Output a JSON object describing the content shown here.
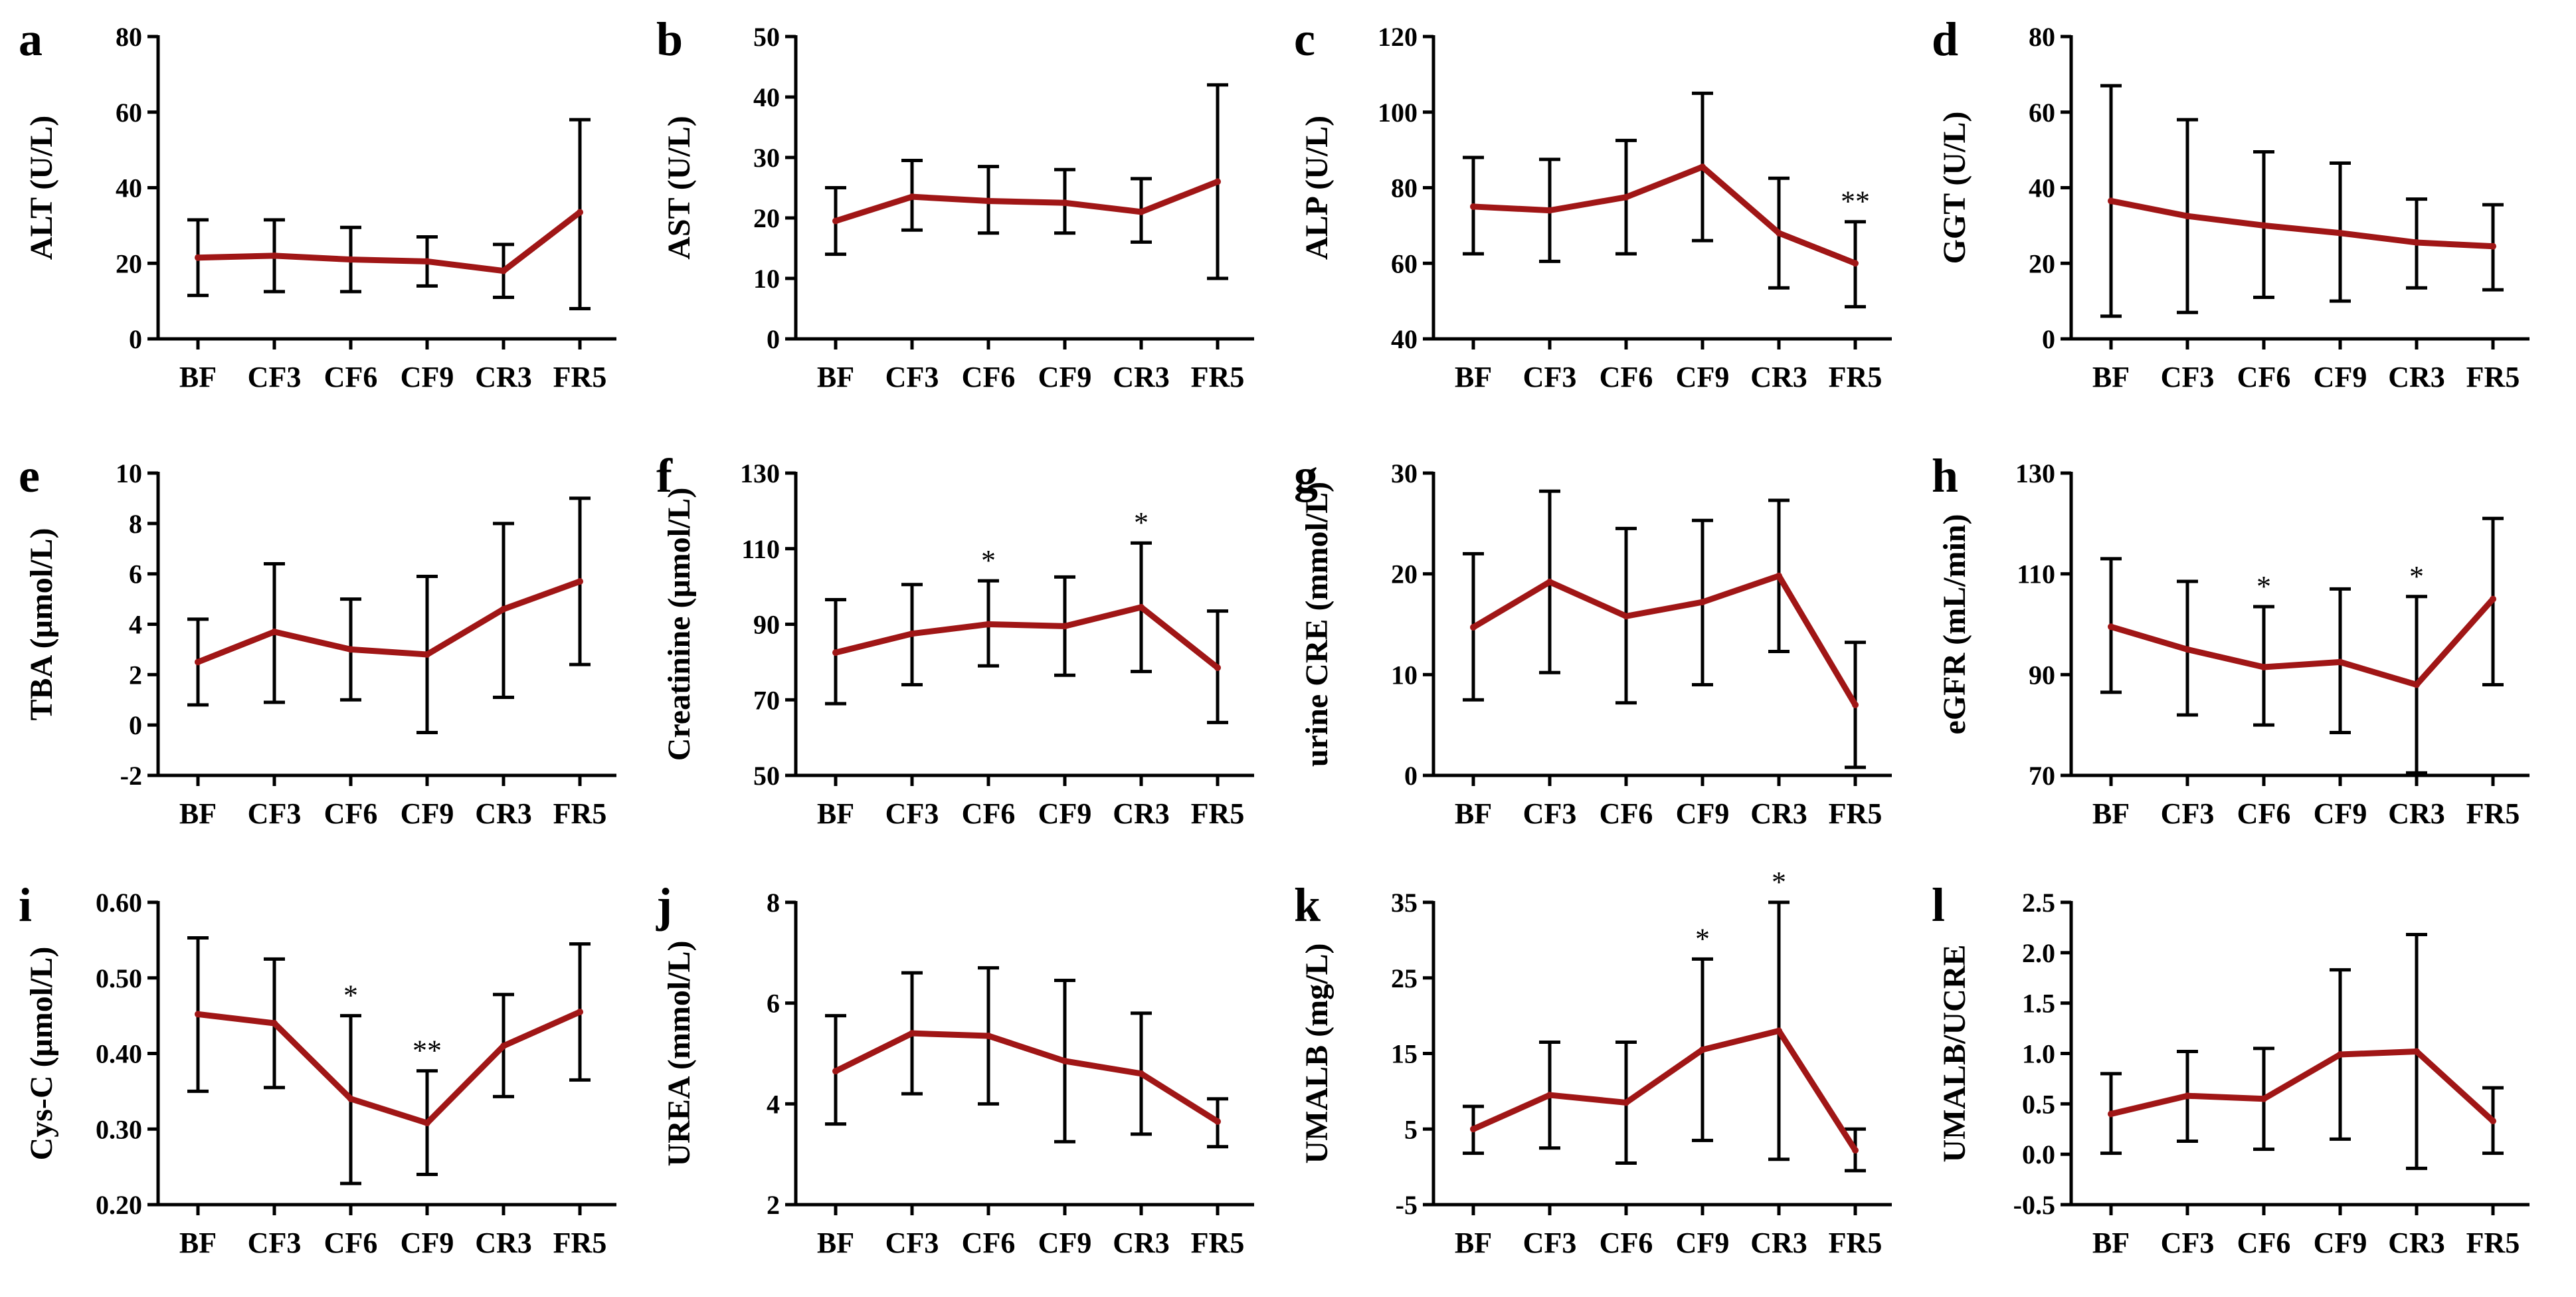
{
  "colors": {
    "series": "#a01616",
    "axis": "#000000",
    "error_bar": "#000000"
  },
  "categories": [
    "BF",
    "CF3",
    "CF6",
    "CF9",
    "CR3",
    "FR5"
  ],
  "chart_data": [
    {
      "id": "a",
      "type": "line",
      "panel_label": "a",
      "ylabel": "ALT (U/L)",
      "ylim": [
        0,
        80
      ],
      "yticks": [
        0,
        20,
        40,
        60,
        80
      ],
      "categories": [
        "BF",
        "CF3",
        "CF6",
        "CF9",
        "CR3",
        "FR5"
      ],
      "values": [
        21.5,
        22,
        21,
        20.5,
        18,
        33.5
      ],
      "err_upper": [
        31.5,
        31.5,
        29.5,
        27,
        25,
        58
      ],
      "err_lower": [
        11.5,
        12.5,
        12.5,
        14,
        11,
        8
      ],
      "significance": [
        "",
        "",
        "",
        "",
        "",
        ""
      ]
    },
    {
      "id": "b",
      "type": "line",
      "panel_label": "b",
      "ylabel": "AST (U/L)",
      "ylim": [
        0,
        50
      ],
      "yticks": [
        0,
        10,
        20,
        30,
        40,
        50
      ],
      "categories": [
        "BF",
        "CF3",
        "CF6",
        "CF9",
        "CR3",
        "FR5"
      ],
      "values": [
        19.5,
        23.5,
        22.8,
        22.5,
        21,
        26
      ],
      "err_upper": [
        25,
        29.5,
        28.5,
        28,
        26.5,
        42
      ],
      "err_lower": [
        14,
        18,
        17.5,
        17.5,
        16,
        10
      ],
      "significance": [
        "",
        "",
        "",
        "",
        "",
        ""
      ]
    },
    {
      "id": "c",
      "type": "line",
      "panel_label": "c",
      "ylabel": "ALP (U/L)",
      "ylim": [
        40,
        120
      ],
      "yticks": [
        40,
        60,
        80,
        100,
        120
      ],
      "categories": [
        "BF",
        "CF3",
        "CF6",
        "CF9",
        "CR3",
        "FR5"
      ],
      "values": [
        75,
        74,
        77.5,
        85.5,
        68,
        60
      ],
      "err_upper": [
        88,
        87.5,
        92.5,
        105,
        82.5,
        71
      ],
      "err_lower": [
        62.5,
        60.5,
        62.5,
        66,
        53.5,
        48.5
      ],
      "significance": [
        "",
        "",
        "",
        "",
        "",
        "**"
      ]
    },
    {
      "id": "d",
      "type": "line",
      "panel_label": "d",
      "ylabel": "GGT (U/L)",
      "ylim": [
        0,
        80
      ],
      "yticks": [
        0,
        20,
        40,
        60,
        80
      ],
      "categories": [
        "BF",
        "CF3",
        "CF6",
        "CF9",
        "CR3",
        "FR5"
      ],
      "values": [
        36.5,
        32.5,
        30,
        28,
        25.5,
        24.5
      ],
      "err_upper": [
        67,
        58,
        49.5,
        46.5,
        37,
        35.5
      ],
      "err_lower": [
        6,
        7,
        11,
        10,
        13.5,
        13
      ],
      "significance": [
        "",
        "",
        "",
        "",
        "",
        ""
      ]
    },
    {
      "id": "e",
      "type": "line",
      "panel_label": "e",
      "ylabel": "TBA (μmol/L)",
      "ylim": [
        -2,
        10
      ],
      "yticks": [
        -2,
        0,
        2,
        4,
        6,
        8,
        10
      ],
      "categories": [
        "BF",
        "CF3",
        "CF6",
        "CF9",
        "CR3",
        "FR5"
      ],
      "values": [
        2.5,
        3.7,
        3.0,
        2.8,
        4.6,
        5.7
      ],
      "err_upper": [
        4.2,
        6.4,
        5.0,
        5.9,
        8.0,
        9.0
      ],
      "err_lower": [
        0.8,
        0.9,
        1.0,
        -0.3,
        1.1,
        2.4
      ],
      "significance": [
        "",
        "",
        "",
        "",
        "",
        ""
      ]
    },
    {
      "id": "f",
      "type": "line",
      "panel_label": "f",
      "ylabel": "Creatinine  (μmol/L)",
      "ylim": [
        50,
        130
      ],
      "yticks": [
        50,
        70,
        90,
        110,
        130
      ],
      "categories": [
        "BF",
        "CF3",
        "CF6",
        "CF9",
        "CR3",
        "FR5"
      ],
      "values": [
        82.5,
        87.5,
        90,
        89.5,
        94.5,
        78.5
      ],
      "err_upper": [
        96.5,
        100.5,
        101.5,
        102.5,
        111.5,
        93.5
      ],
      "err_lower": [
        69,
        74,
        79,
        76.5,
        77.5,
        64
      ],
      "significance": [
        "",
        "",
        "*",
        "",
        "*",
        ""
      ]
    },
    {
      "id": "g",
      "type": "line",
      "panel_label": "g",
      "ylabel": "urine CRE  (mmol/L)",
      "ylim": [
        0,
        30
      ],
      "yticks": [
        0,
        10,
        20,
        30
      ],
      "categories": [
        "BF",
        "CF3",
        "CF6",
        "CF9",
        "CR3",
        "FR5"
      ],
      "values": [
        14.7,
        19.2,
        15.8,
        17.2,
        19.8,
        7
      ],
      "err_upper": [
        22,
        28.2,
        24.5,
        25.3,
        27.3,
        13.2
      ],
      "err_lower": [
        7.5,
        10.2,
        7.2,
        9,
        12.3,
        0.8
      ],
      "significance": [
        "",
        "",
        "",
        "",
        "",
        ""
      ]
    },
    {
      "id": "h",
      "type": "line",
      "panel_label": "h",
      "ylabel": "eGFR (mL/min)",
      "ylim": [
        70,
        130
      ],
      "yticks": [
        70,
        90,
        110,
        130
      ],
      "categories": [
        "BF",
        "CF3",
        "CF6",
        "CF9",
        "CR3",
        "FR5"
      ],
      "values": [
        99.5,
        95,
        91.5,
        92.5,
        88,
        105
      ],
      "err_upper": [
        113,
        108.5,
        103.5,
        107,
        105.5,
        121
      ],
      "err_lower": [
        86.5,
        82,
        80,
        78.5,
        70.5,
        88
      ],
      "significance": [
        "",
        "",
        "*",
        "",
        "*",
        ""
      ]
    },
    {
      "id": "i",
      "type": "line",
      "panel_label": "i",
      "ylabel": "Cys-C  (μmol/L)",
      "ylim": [
        0.2,
        0.6
      ],
      "yticks": [
        0.2,
        0.3,
        0.4,
        0.5,
        0.6
      ],
      "categories": [
        "BF",
        "CF3",
        "CF6",
        "CF9",
        "CR3",
        "FR5"
      ],
      "values": [
        0.452,
        0.44,
        0.34,
        0.308,
        0.41,
        0.455
      ],
      "err_upper": [
        0.553,
        0.525,
        0.45,
        0.377,
        0.478,
        0.545
      ],
      "err_lower": [
        0.35,
        0.355,
        0.228,
        0.24,
        0.343,
        0.365
      ],
      "significance": [
        "",
        "",
        "*",
        "**",
        "",
        ""
      ]
    },
    {
      "id": "j",
      "type": "line",
      "panel_label": "j",
      "ylabel": "UREA  (mmol/L)",
      "ylim": [
        2,
        8
      ],
      "yticks": [
        2,
        4,
        6,
        8
      ],
      "categories": [
        "BF",
        "CF3",
        "CF6",
        "CF9",
        "CR3",
        "FR5"
      ],
      "values": [
        4.65,
        5.4,
        5.35,
        4.85,
        4.6,
        3.65
      ],
      "err_upper": [
        5.75,
        6.6,
        6.7,
        6.45,
        5.8,
        4.1
      ],
      "err_lower": [
        3.6,
        4.2,
        4.0,
        3.25,
        3.4,
        3.15
      ],
      "significance": [
        "",
        "",
        "",
        "",
        "",
        ""
      ]
    },
    {
      "id": "k",
      "type": "line",
      "panel_label": "k",
      "ylabel": "UMALB (mg/L)",
      "ylim": [
        -5,
        35
      ],
      "yticks": [
        -5,
        5,
        15,
        25,
        35
      ],
      "categories": [
        "BF",
        "CF3",
        "CF6",
        "CF9",
        "CR3",
        "FR5"
      ],
      "values": [
        5,
        9.5,
        8.5,
        15.5,
        18,
        2.2
      ],
      "err_upper": [
        8,
        16.5,
        16.5,
        27.5,
        35,
        5
      ],
      "err_lower": [
        1.8,
        2.5,
        0.5,
        3.5,
        1,
        -0.5
      ],
      "significance": [
        "",
        "",
        "",
        "*",
        "*",
        ""
      ]
    },
    {
      "id": "l",
      "type": "line",
      "panel_label": "l",
      "ylabel": "UMALB/UCRE",
      "ylim": [
        -0.5,
        2.5
      ],
      "yticks": [
        -0.5,
        0.0,
        0.5,
        1.0,
        1.5,
        2.0,
        2.5
      ],
      "categories": [
        "BF",
        "CF3",
        "CF6",
        "CF9",
        "CR3",
        "FR5"
      ],
      "values": [
        0.4,
        0.58,
        0.55,
        0.99,
        1.02,
        0.33
      ],
      "err_upper": [
        0.8,
        1.02,
        1.05,
        1.83,
        2.18,
        0.66
      ],
      "err_lower": [
        0.01,
        0.13,
        0.05,
        0.15,
        -0.14,
        0.01
      ],
      "significance": [
        "",
        "",
        "",
        "",
        "",
        ""
      ]
    }
  ]
}
